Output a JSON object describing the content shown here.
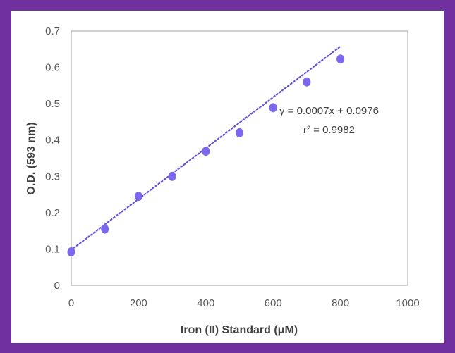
{
  "chart_data": {
    "type": "scatter",
    "x": [
      0,
      100,
      200,
      300,
      400,
      500,
      600,
      700,
      800
    ],
    "y": [
      0.092,
      0.155,
      0.245,
      0.3,
      0.369,
      0.42,
      0.489,
      0.56,
      0.623
    ],
    "xlabel": "Iron (II) Standard (μM)",
    "ylabel": "O.D. (593 nm)",
    "xlim": [
      0,
      1000
    ],
    "ylim": [
      0,
      0.7
    ],
    "xticks": [
      "0",
      "200",
      "400",
      "600",
      "800",
      "1000"
    ],
    "yticks": [
      "0",
      "0.1",
      "0.2",
      "0.3",
      "0.4",
      "0.5",
      "0.6",
      "0.7"
    ],
    "trendline": {
      "type": "linear",
      "slope": 0.0007,
      "intercept": 0.0976,
      "equation": "y = 0.0007x + 0.0976",
      "r_squared": "r² = 0.9982"
    },
    "grid": false,
    "legend": "none",
    "colors": {
      "marker": "#7B68EE",
      "trendline": "#6A4FD8",
      "axis": "#a6a6a6",
      "background": "#7030A0"
    }
  }
}
